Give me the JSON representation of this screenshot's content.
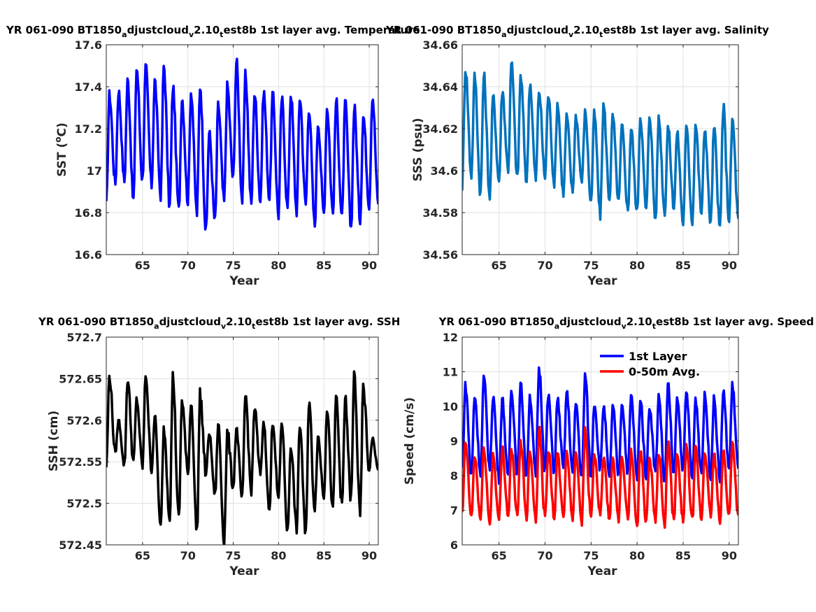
{
  "chart_data": [
    {
      "type": "line",
      "title": "YR 061-090 BT1850_adjustcloud_v2.10_test8b 1st layer avg. Temperature",
      "title_parts": [
        "YR 061-090 BT1850",
        "a",
        "djustcloud",
        "v",
        "2.10",
        "t",
        "est8b 1st layer avg. Temperature"
      ],
      "xlabel": "Year",
      "ylabel": "SST (",
      "ylabel_sup": "o",
      "ylabel_tail": "C)",
      "xlim": [
        61,
        91
      ],
      "ylim": [
        16.6,
        17.6
      ],
      "xticks": [
        65,
        70,
        75,
        80,
        85,
        90
      ],
      "xtick_labels": [
        "65",
        "70",
        "75",
        "80",
        "85",
        "90"
      ],
      "yticks": [
        16.6,
        16.8,
        17.0,
        17.2,
        17.4,
        17.6
      ],
      "ytick_labels": [
        "16.6",
        "16.8",
        "17",
        "17.2",
        "17.4",
        "17.6"
      ],
      "grid": true,
      "series": [
        {
          "name": "",
          "color": "#0000ff",
          "linewidth": 3.5,
          "peaks": [
            17.36,
            17.38,
            17.43,
            17.49,
            17.49,
            17.43,
            17.5,
            17.4,
            17.35,
            17.38,
            17.41,
            17.18,
            17.31,
            17.4,
            17.52,
            17.45,
            17.37,
            17.38,
            17.36,
            17.34,
            17.37,
            17.35,
            17.3,
            17.23,
            17.3,
            17.33,
            17.32,
            17.3,
            17.26,
            17.36
          ],
          "troughs": [
            16.83,
            16.94,
            16.95,
            16.86,
            16.96,
            16.93,
            16.89,
            16.83,
            16.81,
            16.86,
            16.8,
            16.71,
            16.76,
            16.85,
            16.96,
            16.86,
            16.84,
            16.86,
            16.87,
            16.79,
            16.82,
            16.81,
            16.84,
            16.74,
            16.8,
            16.8,
            16.77,
            16.73,
            16.77,
            16.84
          ]
        }
      ]
    },
    {
      "type": "line",
      "title": "YR 061-090 BT1850_adjustcloud_v2.10_test8b 1st layer avg. Salinity",
      "title_parts": [
        "YR 061-090 BT1850",
        "a",
        "djustcloud",
        "v",
        "2.10",
        "t",
        "est8b 1st layer avg. Salinity"
      ],
      "xlabel": "Year",
      "ylabel": "SSS (psu)",
      "xlim": [
        61,
        91
      ],
      "ylim": [
        34.56,
        34.66
      ],
      "xticks": [
        65,
        70,
        75,
        80,
        85,
        90
      ],
      "xtick_labels": [
        "65",
        "70",
        "75",
        "80",
        "85",
        "90"
      ],
      "yticks": [
        34.56,
        34.58,
        34.6,
        34.62,
        34.64,
        34.66
      ],
      "ytick_labels": [
        "34.56",
        "34.58",
        "34.6",
        "34.62",
        "34.64",
        "34.66"
      ],
      "grid": true,
      "series": [
        {
          "name": "",
          "color": "#0072bd",
          "linewidth": 3.5,
          "peaks": [
            34.649,
            34.645,
            34.645,
            34.635,
            34.638,
            34.651,
            34.645,
            34.642,
            34.638,
            34.636,
            34.632,
            34.626,
            34.626,
            34.628,
            34.627,
            34.631,
            34.626,
            34.621,
            34.62,
            34.626,
            34.627,
            34.625,
            34.621,
            34.618,
            34.62,
            34.622,
            34.62,
            34.62,
            34.63,
            34.624
          ],
          "troughs": [
            34.593,
            34.598,
            34.589,
            34.588,
            34.595,
            34.601,
            34.596,
            34.595,
            34.596,
            34.597,
            34.594,
            34.589,
            34.59,
            34.595,
            34.585,
            34.579,
            34.587,
            34.585,
            34.581,
            34.58,
            34.581,
            34.577,
            34.58,
            34.583,
            34.575,
            34.576,
            34.58,
            34.575,
            34.572,
            34.577
          ]
        }
      ]
    },
    {
      "type": "line",
      "title": "YR 061-090 BT1850_adjustcloud_v2.10_test8b 1st layer avg. SSH",
      "title_parts": [
        "YR 061-090 BT1850",
        "a",
        "djustcloud",
        "v",
        "2.10",
        "t",
        "est8b 1st layer avg. SSH"
      ],
      "xlabel": "Year",
      "ylabel": "SSH (cm)",
      "xlim": [
        61,
        91
      ],
      "ylim": [
        572.45,
        572.7
      ],
      "xticks": [
        65,
        70,
        75,
        80,
        85,
        90
      ],
      "xtick_labels": [
        "65",
        "70",
        "75",
        "80",
        "85",
        "90"
      ],
      "yticks": [
        572.45,
        572.5,
        572.55,
        572.6,
        572.65,
        572.7
      ],
      "ytick_labels": [
        "572.45",
        "572.5",
        "572.55",
        "572.6",
        "572.65",
        "572.7"
      ],
      "grid": true,
      "series": [
        {
          "name": "",
          "color": "#000000",
          "linewidth": 3.5,
          "peaks": [
            572.653,
            572.6,
            572.65,
            572.625,
            572.655,
            572.605,
            572.59,
            572.652,
            572.625,
            572.62,
            572.63,
            572.585,
            572.595,
            572.585,
            572.59,
            572.63,
            572.615,
            572.598,
            572.6,
            572.598,
            572.57,
            572.595,
            572.622,
            572.58,
            572.615,
            572.628,
            572.625,
            572.655,
            572.64,
            572.578
          ],
          "troughs": [
            572.545,
            572.56,
            572.545,
            572.55,
            572.545,
            572.54,
            572.47,
            572.485,
            572.48,
            572.535,
            572.465,
            572.535,
            572.51,
            572.455,
            572.52,
            572.505,
            572.515,
            572.535,
            572.49,
            572.505,
            572.465,
            572.47,
            572.46,
            572.495,
            572.51,
            572.49,
            572.495,
            572.505,
            572.485,
            572.54
          ]
        }
      ]
    },
    {
      "type": "line",
      "title": "YR 061-090 BT1850_adjustcloud_v2.10_test8b 1st layer avg. Speed",
      "title_parts": [
        "YR 061-090 BT1850",
        "a",
        "djustcloud",
        "v",
        "2.10",
        "t",
        "est8b 1st layer avg. Speed"
      ],
      "xlabel": "Year",
      "ylabel": "Speed (cm/s)",
      "xlim": [
        61,
        91
      ],
      "ylim": [
        6,
        12
      ],
      "xticks": [
        65,
        70,
        75,
        80,
        85,
        90
      ],
      "xtick_labels": [
        "65",
        "70",
        "75",
        "80",
        "85",
        "90"
      ],
      "yticks": [
        6,
        7,
        8,
        9,
        10,
        11,
        12
      ],
      "ytick_labels": [
        "6",
        "7",
        "8",
        "9",
        "10",
        "11",
        "12"
      ],
      "grid": true,
      "legend": {
        "placement": "top-right"
      },
      "series": [
        {
          "name": "1st Layer",
          "color": "#0000ff",
          "linewidth": 3.5,
          "peaks": [
            10.6,
            10.3,
            10.8,
            10.3,
            10.2,
            10.5,
            10.6,
            10.3,
            11.1,
            10.3,
            10.2,
            10.4,
            10.1,
            10.9,
            10.1,
            10.0,
            10.0,
            10.1,
            10.3,
            10.2,
            10.0,
            10.3,
            10.6,
            10.2,
            10.4,
            10.2,
            10.3,
            10.2,
            10.4,
            10.6
          ],
          "troughs": [
            8.2,
            8.0,
            8.1,
            8.2,
            7.9,
            7.9,
            8.1,
            8.0,
            8.0,
            8.2,
            8.1,
            8.2,
            8.1,
            7.9,
            8.0,
            8.2,
            7.9,
            8.0,
            8.1,
            7.9,
            8.0,
            8.1,
            7.8,
            8.0,
            8.2,
            7.9,
            8.1,
            8.0,
            7.9,
            8.2
          ]
        },
        {
          "name": "0-50m Avg.",
          "color": "#ff0000",
          "linewidth": 3.5,
          "peaks": [
            8.95,
            8.55,
            8.8,
            8.6,
            8.8,
            8.75,
            9.0,
            8.75,
            9.35,
            8.75,
            8.6,
            8.7,
            8.7,
            9.3,
            8.6,
            8.5,
            8.5,
            8.6,
            8.7,
            8.8,
            8.5,
            8.7,
            8.95,
            8.6,
            8.8,
            8.75,
            8.7,
            8.6,
            8.7,
            8.95
          ],
          "troughs": [
            6.85,
            6.8,
            6.75,
            6.6,
            6.7,
            6.85,
            6.8,
            6.8,
            6.75,
            6.8,
            6.8,
            6.8,
            6.75,
            6.7,
            6.8,
            6.85,
            6.75,
            6.7,
            6.75,
            6.5,
            6.7,
            6.75,
            6.5,
            6.7,
            6.7,
            6.7,
            6.75,
            6.85,
            6.7,
            6.85
          ]
        }
      ]
    }
  ]
}
